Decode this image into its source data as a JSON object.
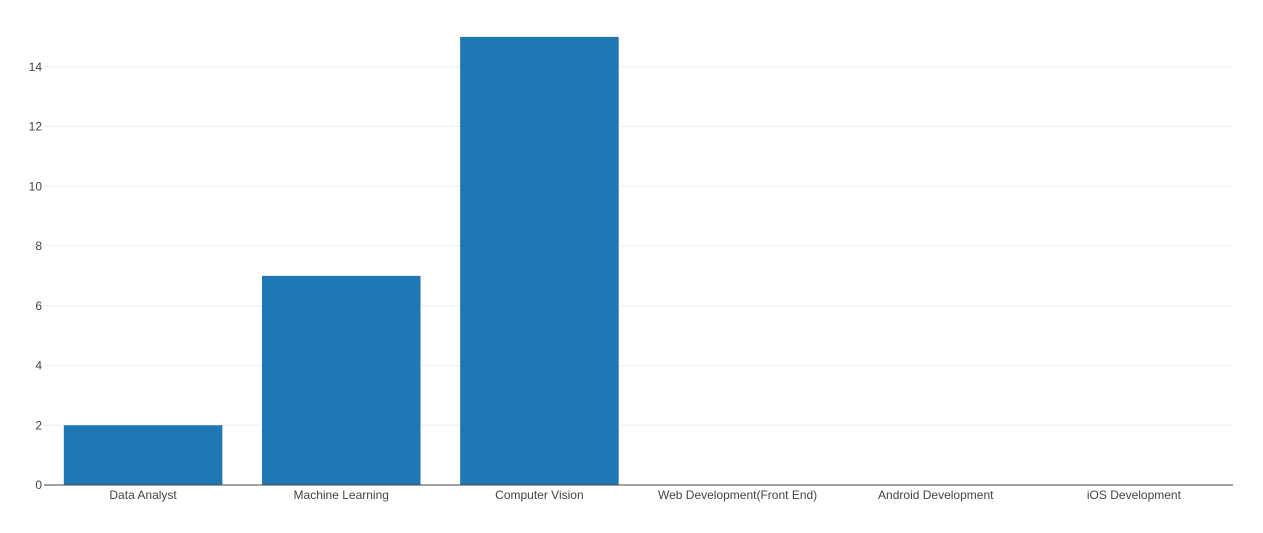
{
  "chart_data": {
    "type": "bar",
    "title": "",
    "xlabel": "",
    "ylabel": "",
    "categories": [
      "Data Analyst",
      "Machine Learning",
      "Computer Vision",
      "Web Development(Front End)",
      "Android Development",
      "iOS Development"
    ],
    "values": [
      2,
      7,
      15,
      0,
      0,
      0
    ],
    "ylim": [
      0,
      15.8
    ],
    "yticks": [
      0,
      2,
      4,
      6,
      8,
      10,
      12,
      14
    ],
    "grid": true,
    "legend": "none",
    "bar_color": "#1f77b4",
    "grid_color": "#eeeeee",
    "axis_color": "#444444"
  }
}
